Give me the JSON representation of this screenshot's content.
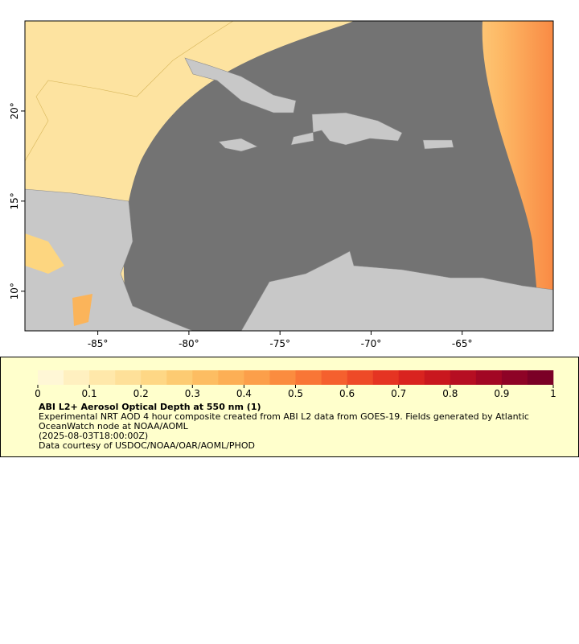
{
  "map": {
    "xlim": [
      -89,
      -60
    ],
    "xticks": [
      {
        "value": -85,
        "label": "-85°"
      },
      {
        "value": -80,
        "label": "-80°"
      },
      {
        "value": -75,
        "label": "-75°"
      },
      {
        "value": -70,
        "label": "-70°"
      },
      {
        "value": -65,
        "label": "-65°"
      }
    ],
    "ylim": [
      7.8,
      25
    ],
    "yticks": [
      {
        "value": 10,
        "label": "10°"
      },
      {
        "value": 15,
        "label": "15°"
      },
      {
        "value": 20,
        "label": "20°"
      }
    ]
  },
  "colorbar": {
    "range": [
      0,
      1
    ],
    "ticks": [
      0,
      0.1,
      0.2,
      0.3,
      0.4,
      0.5,
      0.6,
      0.7,
      0.8,
      0.9,
      1
    ],
    "colors": [
      "#fff7d6",
      "#fff0c0",
      "#ffe8aa",
      "#fee099",
      "#fed785",
      "#fdcb72",
      "#fdbd62",
      "#fdaf55",
      "#fc9f4a",
      "#fb8c3f",
      "#f97636",
      "#f5602e",
      "#ee4a27",
      "#e53422",
      "#d9231f",
      "#c9171e",
      "#b60e22",
      "#a20724",
      "#8e0326",
      "#7b0026"
    ]
  },
  "legend": {
    "title": "ABI L2+ Aerosol Optical Depth at 550 nm (1)",
    "description": "Experimental NRT AOD 4 hour composite created from ABI L2 data from GOES-19. Fields generated by Atlantic OceanWatch node at NOAA/AOML",
    "date": "(2025-08-03T18:00:00Z)",
    "credit": "Data courtesy of USDOC/NOAA/OAR/AOML/PHOD"
  }
}
